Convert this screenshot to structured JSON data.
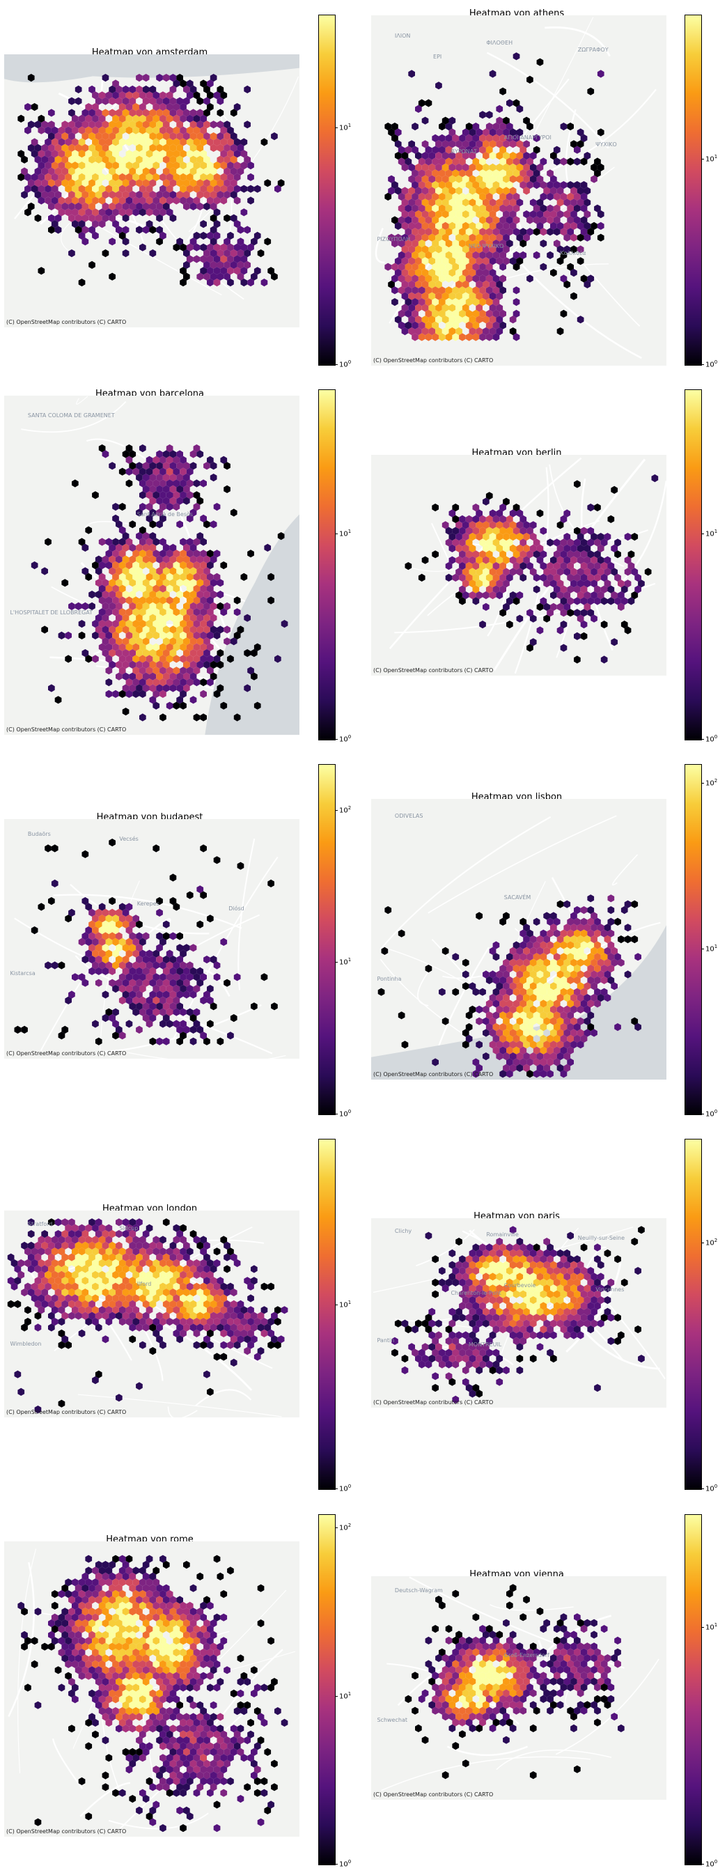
{
  "colors": {
    "scale": [
      "#000004",
      "#2a0b57",
      "#55137d",
      "#7e2482",
      "#a8327e",
      "#d24b5f",
      "#ef6e31",
      "#fa9b14",
      "#f7cd3a",
      "#fcffa4"
    ],
    "map_land": "#f2f3f1",
    "map_water": "#d4d9dd",
    "map_road": "#ffffff",
    "label": "#8a95a3"
  },
  "attribution": "(C) OpenStreetMap contributors (C) CARTO",
  "chart_data": [
    {
      "type": "heatmap",
      "title": "Heatmap von amsterdam",
      "scale": "log",
      "colorbar_ticks": [
        {
          "base": "10",
          "exp": "0",
          "value": 1
        },
        {
          "base": "10",
          "exp": "1",
          "value": 10
        }
      ],
      "vmax": 30,
      "place_labels": [],
      "water": "amsterdam"
    },
    {
      "type": "heatmap",
      "title": "Heatmap von athens",
      "scale": "log",
      "colorbar_ticks": [
        {
          "base": "10",
          "exp": "0",
          "value": 1
        },
        {
          "base": "10",
          "exp": "1",
          "value": 10
        }
      ],
      "vmax": 50,
      "place_labels": [
        "ΙΛΙΟΝ",
        "ΑΓΙΟΙ ΑΝΑΡΓΥΡΟΙ",
        "ΡΙΖΟΥΠΟΛΗ",
        "ΦΙΛΟΘΕΗ",
        "ΨΥΧΙΚΟ",
        "ΝΕΟ ΨΥΧΙΚΟ",
        "ΖΩΓΡΑΦΟΥ",
        "ΒΥΡΩΝΑΣ",
        "Καλλιθέα",
        "ΕΡΙ"
      ],
      "water": "none"
    },
    {
      "type": "heatmap",
      "title": "Heatmap von barcelona",
      "scale": "log",
      "colorbar_ticks": [
        {
          "base": "10",
          "exp": "0",
          "value": 1
        },
        {
          "base": "10",
          "exp": "1",
          "value": 10
        }
      ],
      "vmax": 50,
      "place_labels": [
        "SANTA COLOMA DE GRAMENET",
        "Sant Adrià de Besòs",
        "L'HOSPITALET DE LLOBREGAT"
      ],
      "water": "barcelona"
    },
    {
      "type": "heatmap",
      "title": "Heatmap von berlin",
      "scale": "log",
      "colorbar_ticks": [
        {
          "base": "10",
          "exp": "0",
          "value": 1
        },
        {
          "base": "10",
          "exp": "1",
          "value": 10
        }
      ],
      "vmax": 50,
      "place_labels": [],
      "water": "none"
    },
    {
      "type": "heatmap",
      "title": "Heatmap von budapest",
      "scale": "log",
      "colorbar_ticks": [
        {
          "base": "10",
          "exp": "0",
          "value": 1
        },
        {
          "base": "10",
          "exp": "1",
          "value": 10
        },
        {
          "base": "10",
          "exp": "2",
          "value": 100
        }
      ],
      "vmax": 200,
      "place_labels": [
        "Budaörs",
        "Kerepes",
        "Kistarcsa",
        "Vecsés",
        "Diósd"
      ],
      "water": "none"
    },
    {
      "type": "heatmap",
      "title": "Heatmap von lisbon",
      "scale": "log",
      "colorbar_ticks": [
        {
          "base": "10",
          "exp": "0",
          "value": 1
        },
        {
          "base": "10",
          "exp": "1",
          "value": 10
        },
        {
          "base": "10",
          "exp": "2",
          "value": 100
        }
      ],
      "vmax": 130,
      "place_labels": [
        "ODIVELAS",
        "SACAVÉM",
        "Pontinha"
      ],
      "water": "lisbon"
    },
    {
      "type": "heatmap",
      "title": "Heatmap von london",
      "scale": "log",
      "colorbar_ticks": [
        {
          "base": "10",
          "exp": "0",
          "value": 1
        },
        {
          "base": "10",
          "exp": "1",
          "value": 10
        }
      ],
      "vmax": 80,
      "place_labels": [
        "Stratford",
        "Ilford",
        "Wimbledon",
        "Sidcup"
      ],
      "water": "none"
    },
    {
      "type": "heatmap",
      "title": "Heatmap von paris",
      "scale": "log",
      "colorbar_ticks": [
        {
          "base": "10",
          "exp": "0",
          "value": 1
        },
        {
          "base": "10",
          "exp": "2",
          "value": 100
        }
      ],
      "vmax": 700,
      "place_labels": [
        "Clichy",
        "Courbevoie",
        "Pantin",
        "Romainville",
        "Vincennes",
        "MONTREUIL",
        "Neuilly-sur-Seine",
        "Charenton-le-Pont"
      ],
      "water": "none"
    },
    {
      "type": "heatmap",
      "title": "Heatmap von rome",
      "scale": "log",
      "colorbar_ticks": [
        {
          "base": "10",
          "exp": "0",
          "value": 1
        },
        {
          "base": "10",
          "exp": "1",
          "value": 10
        },
        {
          "base": "10",
          "exp": "2",
          "value": 100
        }
      ],
      "vmax": 120,
      "place_labels": [],
      "water": "none"
    },
    {
      "type": "heatmap",
      "title": "Heatmap von vienna",
      "scale": "log",
      "colorbar_ticks": [
        {
          "base": "10",
          "exp": "0",
          "value": 1
        },
        {
          "base": "10",
          "exp": "1",
          "value": 10
        }
      ],
      "vmax": 30,
      "place_labels": [
        "Deutsch-Wagram",
        "Groß-Enzersdorf",
        "Schwechat"
      ],
      "water": "none"
    }
  ]
}
